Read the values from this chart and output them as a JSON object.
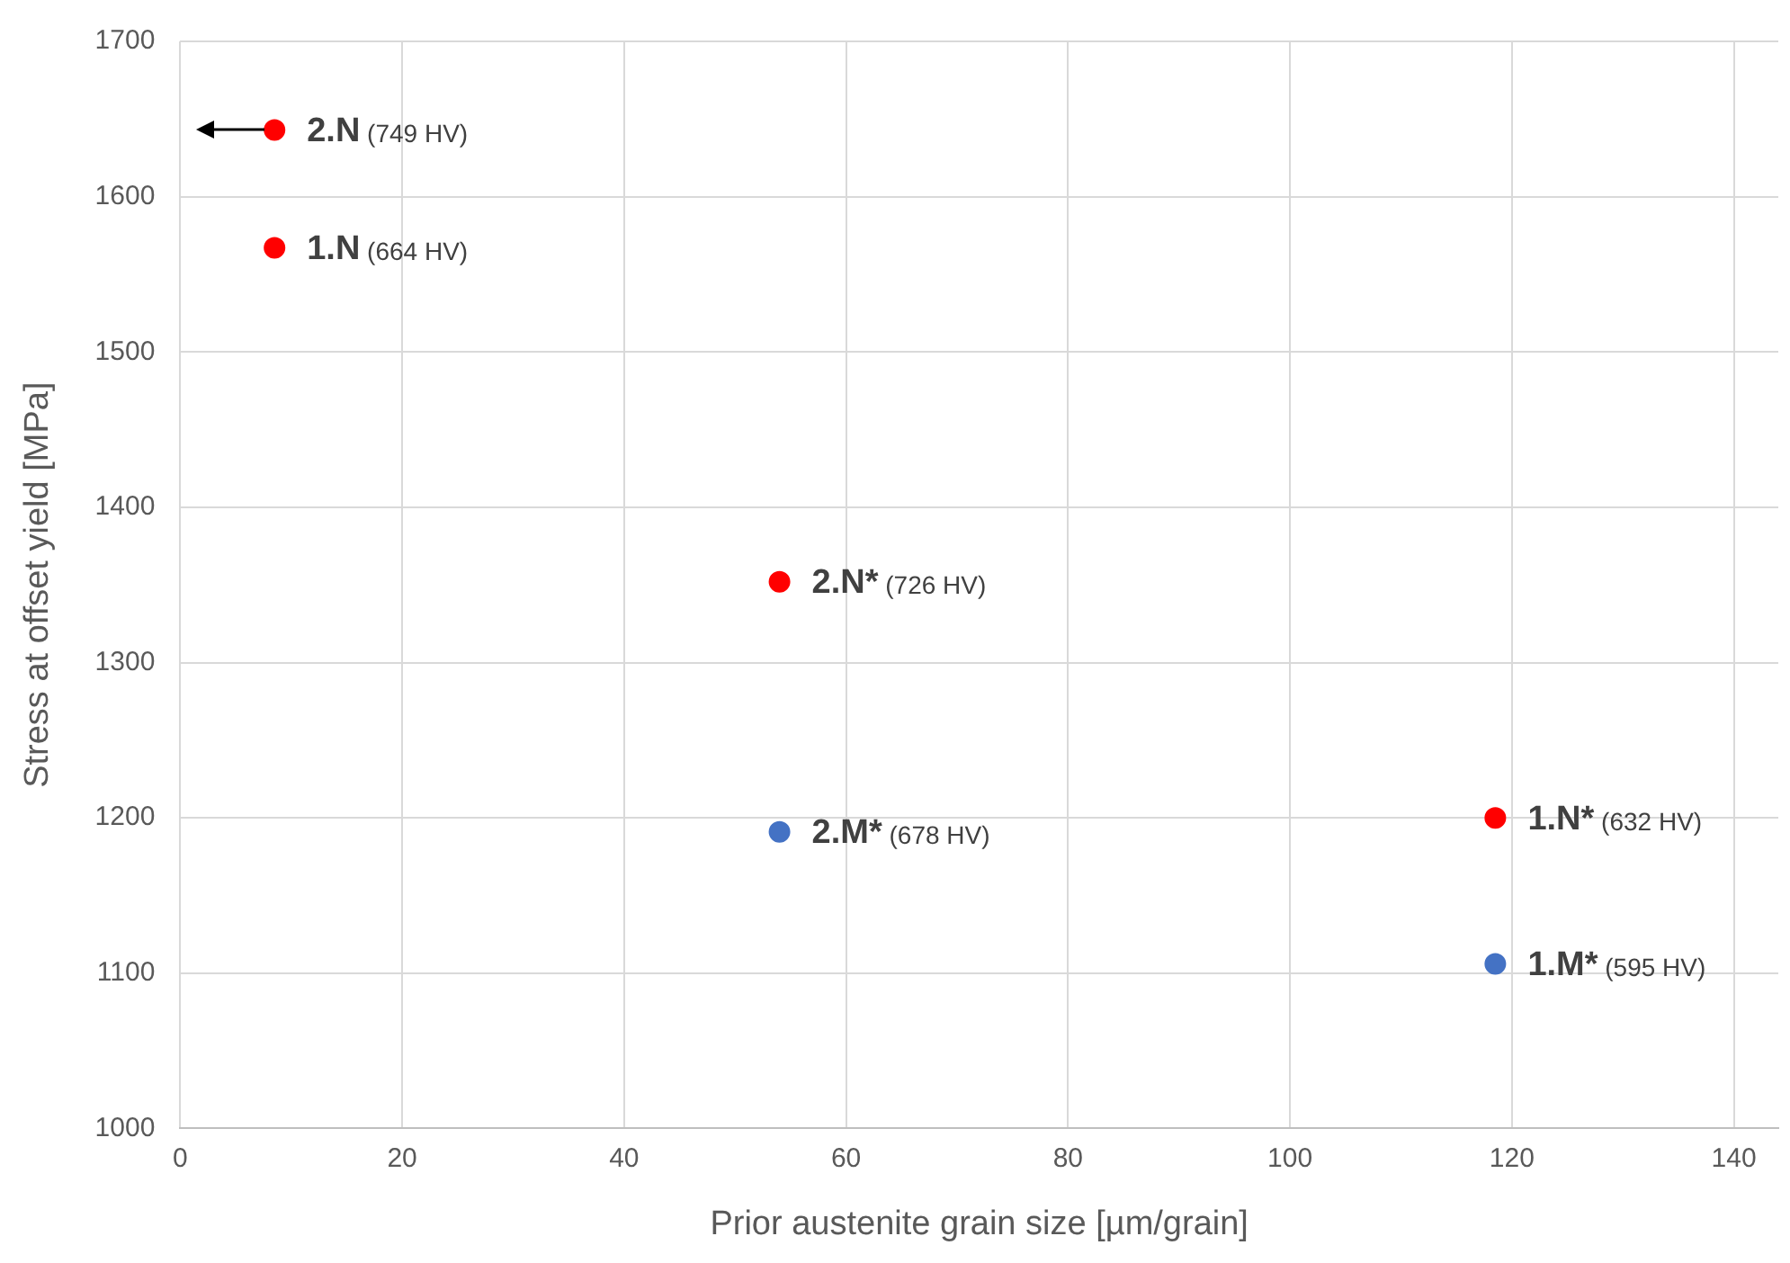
{
  "chart_data": {
    "type": "scatter",
    "xlabel": "Prior austenite grain size [µm/grain]",
    "ylabel": "Stress at offset yield [MPa]",
    "series": [
      {
        "color": "#ff0000",
        "x": [
          8.5,
          8.5,
          54,
          118.5
        ],
        "values": [
          1643,
          1567,
          1352,
          1200
        ]
      },
      {
        "color": "#4472c4",
        "x": [
          54,
          118.5
        ],
        "values": [
          1191,
          1106
        ]
      }
    ],
    "xlim": [
      0,
      144
    ],
    "xticks": [
      0,
      20,
      40,
      60,
      80,
      100,
      120,
      140
    ],
    "ylim": [
      1000,
      1700
    ],
    "yticks": [
      1000,
      1100,
      1200,
      1300,
      1400,
      1500,
      1600,
      1700
    ],
    "grid": true,
    "legend": false,
    "marker": "circle",
    "annotations": [
      {
        "text": "2.N (749 HV)",
        "x": 8.5,
        "y": 1643
      },
      {
        "text": "1.N (664 HV)",
        "x": 8.5,
        "y": 1567
      },
      {
        "text": "2.N* (726 HV)",
        "x": 54,
        "y": 1352
      },
      {
        "text": "2.M* (678 HV)",
        "x": 54,
        "y": 1191
      },
      {
        "text": "1.N* (632 HV)",
        "x": 118.5,
        "y": 1200
      },
      {
        "text": "1.M* (595 HV)",
        "x": 118.5,
        "y": 1106
      }
    ]
  }
}
